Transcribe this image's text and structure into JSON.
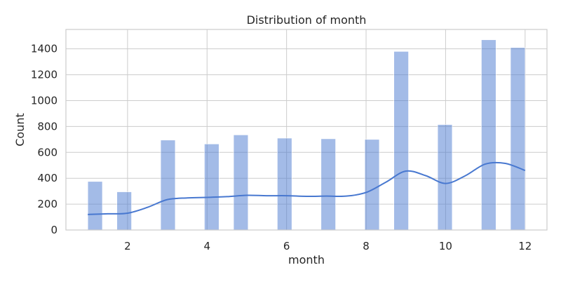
{
  "chart_data": {
    "type": "bar",
    "title": "Distribution of month",
    "xlabel": "month",
    "ylabel": "Count",
    "xlim": [
      0.45,
      12.55
    ],
    "ylim": [
      0,
      1550
    ],
    "x_ticks": [
      2,
      4,
      6,
      8,
      10,
      12
    ],
    "y_ticks": [
      0,
      200,
      400,
      600,
      800,
      1000,
      1200,
      1400
    ],
    "grid": true,
    "bins": [
      {
        "x0": 1.0,
        "x1": 1.367,
        "count": 375
      },
      {
        "x0": 1.733,
        "x1": 2.1,
        "count": 295
      },
      {
        "x0": 2.833,
        "x1": 3.2,
        "count": 695
      },
      {
        "x0": 3.933,
        "x1": 4.3,
        "count": 665
      },
      {
        "x0": 4.667,
        "x1": 5.033,
        "count": 735
      },
      {
        "x0": 5.767,
        "x1": 6.133,
        "count": 710
      },
      {
        "x0": 6.867,
        "x1": 7.233,
        "count": 705
      },
      {
        "x0": 7.967,
        "x1": 8.333,
        "count": 700
      },
      {
        "x0": 8.7,
        "x1": 9.067,
        "count": 1380
      },
      {
        "x0": 9.8,
        "x1": 10.167,
        "count": 815
      },
      {
        "x0": 10.9,
        "x1": 11.267,
        "count": 1470
      },
      {
        "x0": 11.633,
        "x1": 12.0,
        "count": 1410
      }
    ],
    "kde": {
      "x": [
        1.0,
        1.5,
        2.0,
        2.5,
        3.0,
        3.5,
        4.0,
        4.5,
        5.0,
        5.5,
        6.0,
        6.5,
        7.0,
        7.5,
        8.0,
        8.5,
        9.0,
        9.5,
        10.0,
        10.5,
        11.0,
        11.5,
        12.0
      ],
      "y": [
        120,
        125,
        130,
        175,
        235,
        248,
        252,
        258,
        268,
        265,
        265,
        260,
        262,
        262,
        290,
        370,
        455,
        420,
        360,
        420,
        510,
        515,
        460
      ]
    },
    "colors": {
      "bar": "#4878d0",
      "line": "#4878d0",
      "grid": "#cccccc",
      "frame": "#cccccc",
      "text": "#262626"
    }
  }
}
